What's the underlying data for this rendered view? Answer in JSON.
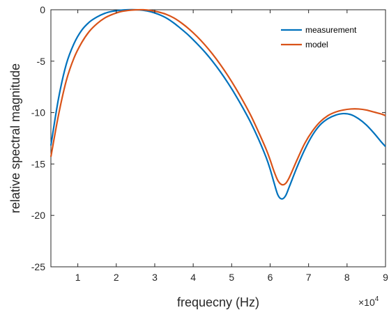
{
  "chart_data": {
    "type": "line",
    "xlabel": "frequecny (Hz)",
    "ylabel": "relative spectral magnitude",
    "x_multiplier_label": "×10",
    "x_multiplier_exponent": "4",
    "xlim": [
      0.3,
      9
    ],
    "ylim": [
      -25,
      0
    ],
    "xticks": [
      1,
      2,
      3,
      4,
      5,
      6,
      7,
      8,
      9
    ],
    "xtick_labels": [
      "1",
      "2",
      "3",
      "4",
      "5",
      "6",
      "7",
      "8",
      "9"
    ],
    "yticks": [
      0,
      -5,
      -10,
      -15,
      -20,
      -25
    ],
    "ytick_labels": [
      "0",
      "-5",
      "-10",
      "-15",
      "-20",
      "-25"
    ],
    "grid": false,
    "legend_position": "top-right",
    "series": [
      {
        "name": "measurement",
        "color": "#0072BD",
        "points": [
          [
            0.3,
            -13.2
          ],
          [
            0.5,
            -8.6
          ],
          [
            0.7,
            -5.3
          ],
          [
            0.9,
            -3.3
          ],
          [
            1.1,
            -2.0
          ],
          [
            1.3,
            -1.2
          ],
          [
            1.5,
            -0.7
          ],
          [
            1.7,
            -0.35
          ],
          [
            1.9,
            -0.15
          ],
          [
            2.1,
            -0.05
          ],
          [
            2.3,
            0.0
          ],
          [
            2.5,
            0.0
          ],
          [
            2.7,
            -0.05
          ],
          [
            2.9,
            -0.2
          ],
          [
            3.1,
            -0.45
          ],
          [
            3.3,
            -0.8
          ],
          [
            3.5,
            -1.3
          ],
          [
            3.7,
            -1.9
          ],
          [
            3.9,
            -2.55
          ],
          [
            4.1,
            -3.3
          ],
          [
            4.3,
            -4.1
          ],
          [
            4.5,
            -5.0
          ],
          [
            4.7,
            -6.0
          ],
          [
            4.9,
            -7.1
          ],
          [
            5.1,
            -8.3
          ],
          [
            5.3,
            -9.6
          ],
          [
            5.5,
            -11.0
          ],
          [
            5.7,
            -12.6
          ],
          [
            5.9,
            -14.4
          ],
          [
            6.0,
            -15.5
          ],
          [
            6.1,
            -16.8
          ],
          [
            6.2,
            -18.0
          ],
          [
            6.3,
            -18.4
          ],
          [
            6.4,
            -18.1
          ],
          [
            6.5,
            -17.2
          ],
          [
            6.7,
            -15.3
          ],
          [
            6.9,
            -13.6
          ],
          [
            7.1,
            -12.2
          ],
          [
            7.3,
            -11.2
          ],
          [
            7.5,
            -10.6
          ],
          [
            7.7,
            -10.25
          ],
          [
            7.9,
            -10.1
          ],
          [
            8.1,
            -10.2
          ],
          [
            8.3,
            -10.6
          ],
          [
            8.5,
            -11.2
          ],
          [
            8.7,
            -12.0
          ],
          [
            8.9,
            -12.9
          ],
          [
            9.0,
            -13.3
          ]
        ]
      },
      {
        "name": "model",
        "color": "#D95319",
        "points": [
          [
            0.3,
            -14.3
          ],
          [
            0.5,
            -10.2
          ],
          [
            0.7,
            -6.9
          ],
          [
            0.9,
            -4.7
          ],
          [
            1.1,
            -3.2
          ],
          [
            1.3,
            -2.1
          ],
          [
            1.5,
            -1.35
          ],
          [
            1.7,
            -0.8
          ],
          [
            1.9,
            -0.45
          ],
          [
            2.1,
            -0.2
          ],
          [
            2.3,
            -0.07
          ],
          [
            2.5,
            -0.01
          ],
          [
            2.7,
            0.0
          ],
          [
            2.9,
            -0.07
          ],
          [
            3.1,
            -0.22
          ],
          [
            3.3,
            -0.45
          ],
          [
            3.5,
            -0.8
          ],
          [
            3.7,
            -1.3
          ],
          [
            3.9,
            -1.9
          ],
          [
            4.1,
            -2.6
          ],
          [
            4.3,
            -3.4
          ],
          [
            4.5,
            -4.3
          ],
          [
            4.7,
            -5.3
          ],
          [
            4.9,
            -6.4
          ],
          [
            5.1,
            -7.6
          ],
          [
            5.3,
            -8.9
          ],
          [
            5.5,
            -10.3
          ],
          [
            5.7,
            -11.9
          ],
          [
            5.9,
            -13.6
          ],
          [
            6.0,
            -14.6
          ],
          [
            6.1,
            -15.7
          ],
          [
            6.2,
            -16.6
          ],
          [
            6.3,
            -17.0
          ],
          [
            6.4,
            -16.9
          ],
          [
            6.5,
            -16.3
          ],
          [
            6.7,
            -14.6
          ],
          [
            6.9,
            -13.0
          ],
          [
            7.1,
            -11.8
          ],
          [
            7.3,
            -10.9
          ],
          [
            7.5,
            -10.3
          ],
          [
            7.7,
            -9.95
          ],
          [
            7.9,
            -9.75
          ],
          [
            8.1,
            -9.65
          ],
          [
            8.3,
            -9.65
          ],
          [
            8.5,
            -9.75
          ],
          [
            8.7,
            -9.95
          ],
          [
            8.9,
            -10.15
          ],
          [
            9.0,
            -10.3
          ]
        ]
      }
    ]
  }
}
